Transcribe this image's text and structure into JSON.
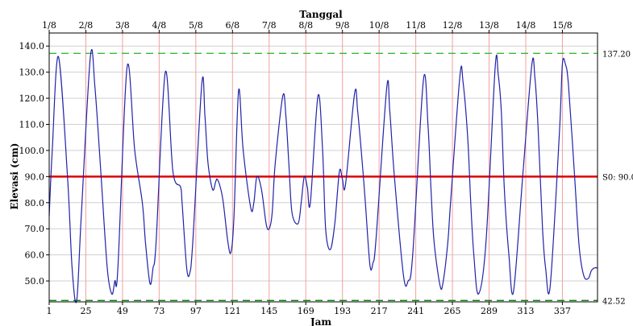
{
  "chart_data": {
    "type": "line",
    "title": "Tanggal",
    "xlabel": "Jam",
    "ylabel": "Elevasi (cm)",
    "xlim": [
      1,
      360
    ],
    "ylim": [
      42,
      145
    ],
    "y_ticks": [
      50,
      60,
      70,
      80,
      90,
      100,
      110,
      120,
      130,
      140
    ],
    "y_tick_labels": [
      "50.0",
      "60.0",
      "70.0",
      "80.0",
      "90.0",
      "100.0",
      "110.0",
      "120.0",
      "130.0",
      "140.0"
    ],
    "x_ticks": [
      1,
      25,
      49,
      73,
      97,
      121,
      145,
      169,
      193,
      217,
      241,
      265,
      289,
      313,
      337
    ],
    "x_tick_labels": [
      "1",
      "25",
      "49",
      "73",
      "97",
      "121",
      "145",
      "169",
      "193",
      "217",
      "241",
      "265",
      "289",
      "313",
      "337"
    ],
    "date_ticks": [
      1,
      25,
      49,
      73,
      97,
      121,
      145,
      169,
      193,
      217,
      241,
      265,
      289,
      313,
      337
    ],
    "date_tick_labels": [
      "1/8",
      "2/8",
      "3/8",
      "4/8",
      "5/8",
      "6/8",
      "7/8",
      "8/8",
      "9/8",
      "10/8",
      "11/8",
      "12/8",
      "13/8",
      "14/8",
      "15/8"
    ],
    "grid": true,
    "reference_lines": [
      {
        "label": "137.20",
        "y": 137.2,
        "color": "#33bb33",
        "style": "dashed"
      },
      {
        "label": "S0: 90.00",
        "y": 90.0,
        "color": "#dd0000",
        "style": "solid"
      },
      {
        "label": "42.52",
        "y": 42.52,
        "color": "#008800",
        "style": "dashed"
      }
    ],
    "series": [
      {
        "color": "#2222aa",
        "x": [
          1,
          3,
          7,
          13,
          16,
          19,
          22,
          28,
          31,
          35,
          39,
          42,
          44,
          46,
          52,
          57,
          62,
          64,
          67,
          69,
          71,
          77,
          82,
          87,
          88,
          91,
          93,
          95,
          101,
          103,
          105,
          108,
          110,
          111,
          113,
          115,
          118,
          120,
          122,
          125,
          128,
          133,
          135,
          137,
          140,
          143,
          145,
          147,
          149,
          154,
          156,
          158,
          160,
          164,
          166,
          168,
          170,
          172,
          177,
          180,
          182,
          185,
          188,
          191,
          193,
          195,
          201,
          203,
          206,
          208,
          211,
          213,
          215,
          222,
          224,
          227,
          233,
          236,
          239,
          246,
          249,
          251,
          253,
          257,
          259,
          262,
          264,
          270,
          272,
          275,
          277,
          279,
          282,
          287,
          293,
          295,
          297,
          299,
          302,
          305,
          311,
          317,
          319,
          321,
          324,
          326,
          329,
          335,
          337,
          339,
          341,
          345,
          348,
          351,
          354,
          356,
          358,
          360
        ],
        "y": [
          75,
          100,
          136,
          90,
          55,
          42.5,
          75,
          136,
          124,
          90,
          55,
          45,
          50,
          55,
          132,
          100,
          80,
          65,
          49,
          55,
          65,
          130,
          92,
          86,
          80,
          55,
          53,
          65,
          126,
          113,
          95,
          85,
          88,
          89,
          86,
          80,
          65,
          61,
          75,
          123,
          100,
          78,
          80,
          90,
          85,
          72,
          70,
          76,
          95,
          121,
          113,
          94,
          76,
          72,
          80,
          90,
          86,
          80,
          121,
          100,
          70,
          62,
          72,
          92,
          89,
          87,
          122,
          115,
          95,
          80,
          56,
          57,
          66,
          124,
          115,
          90,
          52,
          50,
          60,
          127,
          110,
          85,
          65,
          48,
          50,
          65,
          82,
          129,
          126,
          105,
          80,
          60,
          45,
          65,
          132,
          129,
          115,
          85,
          60,
          46,
          90,
          133,
          128,
          110,
          70,
          55,
          48,
          106,
          133,
          133,
          125,
          90,
          63,
          52,
          51,
          54,
          55,
          55
        ]
      }
    ]
  }
}
